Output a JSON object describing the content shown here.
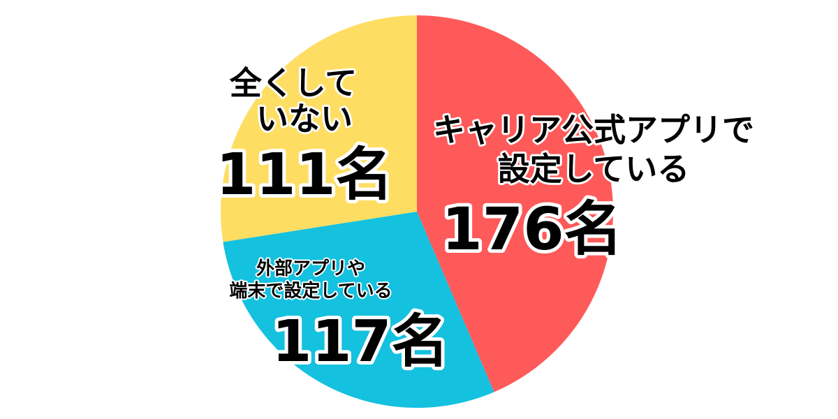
{
  "chart_data": {
    "type": "pie",
    "start": "top",
    "direction": "clockwise",
    "slices": [
      {
        "label_lines": [
          "キャリア公式アプリで",
          "設定している"
        ],
        "value": 176,
        "value_label": "176名",
        "color": "#FF5A5A"
      },
      {
        "label_lines": [
          "外部アプリや",
          "端末で設定している"
        ],
        "value": 117,
        "value_label": "117名",
        "color": "#14C1DF"
      },
      {
        "label_lines": [
          "全くして",
          "いない"
        ],
        "value": 111,
        "value_label": "111名",
        "color": "#FEDD63"
      }
    ]
  }
}
